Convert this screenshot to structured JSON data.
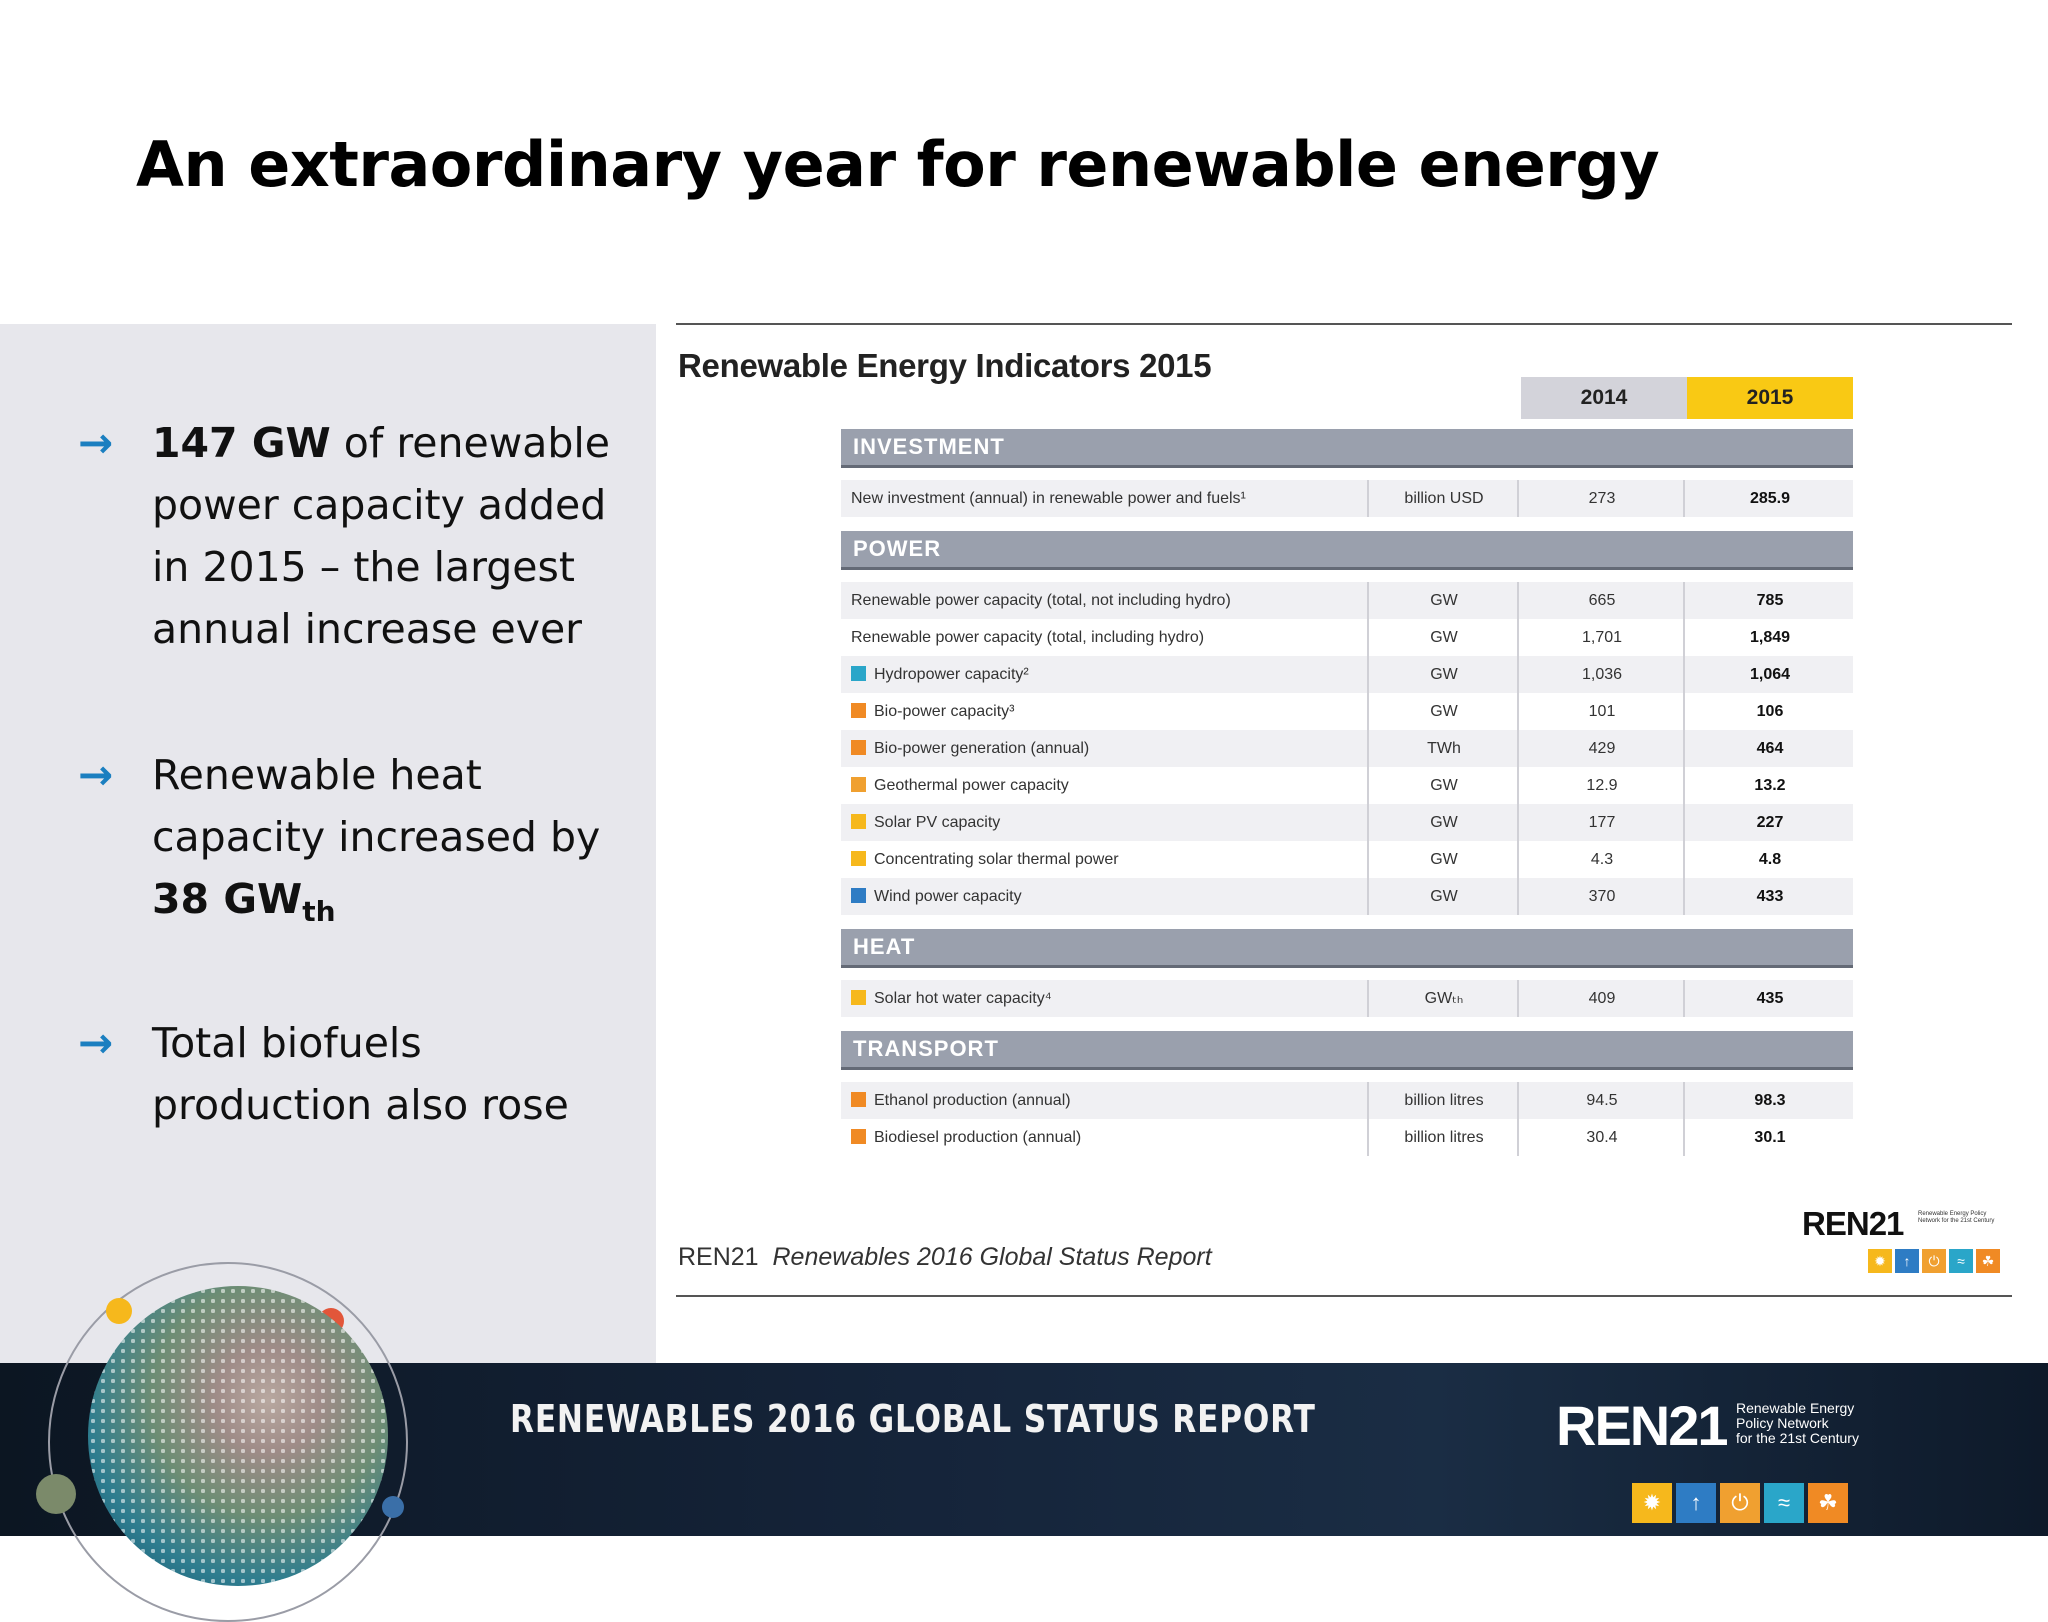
{
  "slide": {
    "title": "An extraordinary year for renewable energy"
  },
  "bullets": [
    {
      "bold_lead": "147 GW",
      "text": " of renewable power capacity added in 2015 – the largest annual increase ever"
    },
    {
      "text": "Renewable heat capacity increased by ",
      "bold_value": "38 GW",
      "bold_sub": "th"
    },
    {
      "text": "Total biofuels production also rose"
    }
  ],
  "bullet_arrow": "→",
  "table": {
    "title": "Renewable Energy Indicators 2015",
    "years": [
      "2014",
      "2015"
    ],
    "sections": [
      {
        "name": "INVESTMENT",
        "rows": [
          {
            "label": "New investment (annual) in renewable power and fuels¹",
            "unit": "billion USD",
            "v2014": "273",
            "v2015": "285.9",
            "icon": "none",
            "color": ""
          }
        ]
      },
      {
        "name": "POWER",
        "rows": [
          {
            "label": "Renewable power capacity (total, not including hydro)",
            "unit": "GW",
            "v2014": "665",
            "v2015": "785",
            "icon": "none",
            "color": ""
          },
          {
            "label": "Renewable power capacity (total, including hydro)",
            "unit": "GW",
            "v2014": "1,701",
            "v2015": "1,849",
            "icon": "none",
            "color": ""
          },
          {
            "label": "Hydropower capacity²",
            "unit": "GW",
            "v2014": "1,036",
            "v2015": "1,064",
            "icon": "hydro-icon",
            "color": "#2aa6c9"
          },
          {
            "label": "Bio-power capacity³",
            "unit": "GW",
            "v2014": "101",
            "v2015": "106",
            "icon": "bio-icon",
            "color": "#f08a24"
          },
          {
            "label": "Bio-power generation (annual)",
            "unit": "TWh",
            "v2014": "429",
            "v2015": "464",
            "icon": "bio-icon",
            "color": "#f08a24"
          },
          {
            "label": "Geothermal power capacity",
            "unit": "GW",
            "v2014": "12.9",
            "v2015": "13.2",
            "icon": "geothermal-icon",
            "color": "#f0a030"
          },
          {
            "label": "Solar PV capacity",
            "unit": "GW",
            "v2014": "177",
            "v2015": "227",
            "icon": "solar-icon",
            "color": "#f6b81c"
          },
          {
            "label": "Concentrating solar thermal power",
            "unit": "GW",
            "v2014": "4.3",
            "v2015": "4.8",
            "icon": "solar-icon",
            "color": "#f6b81c"
          },
          {
            "label": "Wind power capacity",
            "unit": "GW",
            "v2014": "370",
            "v2015": "433",
            "icon": "wind-icon",
            "color": "#2e7cc4"
          }
        ]
      },
      {
        "name": "HEAT",
        "rows": [
          {
            "label": "Solar hot water capacity⁴",
            "unit": "GWₜₕ",
            "v2014": "409",
            "v2015": "435",
            "icon": "solar-icon",
            "color": "#f6b81c"
          }
        ]
      },
      {
        "name": "TRANSPORT",
        "rows": [
          {
            "label": "Ethanol production (annual)",
            "unit": "billion litres",
            "v2014": "94.5",
            "v2015": "98.3",
            "icon": "bio-icon",
            "color": "#f08a24"
          },
          {
            "label": "Biodiesel production (annual)",
            "unit": "billion litres",
            "v2014": "30.4",
            "v2015": "30.1",
            "icon": "bio-icon",
            "color": "#f08a24"
          }
        ]
      }
    ],
    "source_org": "REN21",
    "source_report": "Renewables 2016 Global Status Report"
  },
  "panel_logo": {
    "name_a": "REN",
    "name_b": "21",
    "tagline": "Renewable Energy Policy Network for the 21st Century"
  },
  "footer": {
    "title": "RENEWABLES 2016 GLOBAL STATUS REPORT",
    "logo_a": "REN",
    "logo_b": "21",
    "logo_line1": "Renewable Energy",
    "logo_line2": "Policy Network",
    "logo_line3": "for the 21st Century"
  },
  "logo_icons": [
    {
      "name": "sun-icon",
      "glyph": "✹",
      "color": "#f6b81c"
    },
    {
      "name": "wind-turbine-icon",
      "glyph": "↑",
      "color": "#2e7cc4"
    },
    {
      "name": "power-icon",
      "glyph": "⏻",
      "color": "#f0a030"
    },
    {
      "name": "water-icon",
      "glyph": "≈",
      "color": "#2aa6c9"
    },
    {
      "name": "leaf-icon",
      "glyph": "☘",
      "color": "#f08a24"
    }
  ],
  "colors": {
    "arrow": "#1b7fc0",
    "year_2015": "#f9c914",
    "year_2014": "#d3d3da",
    "section_header": "#9aa0ad"
  }
}
